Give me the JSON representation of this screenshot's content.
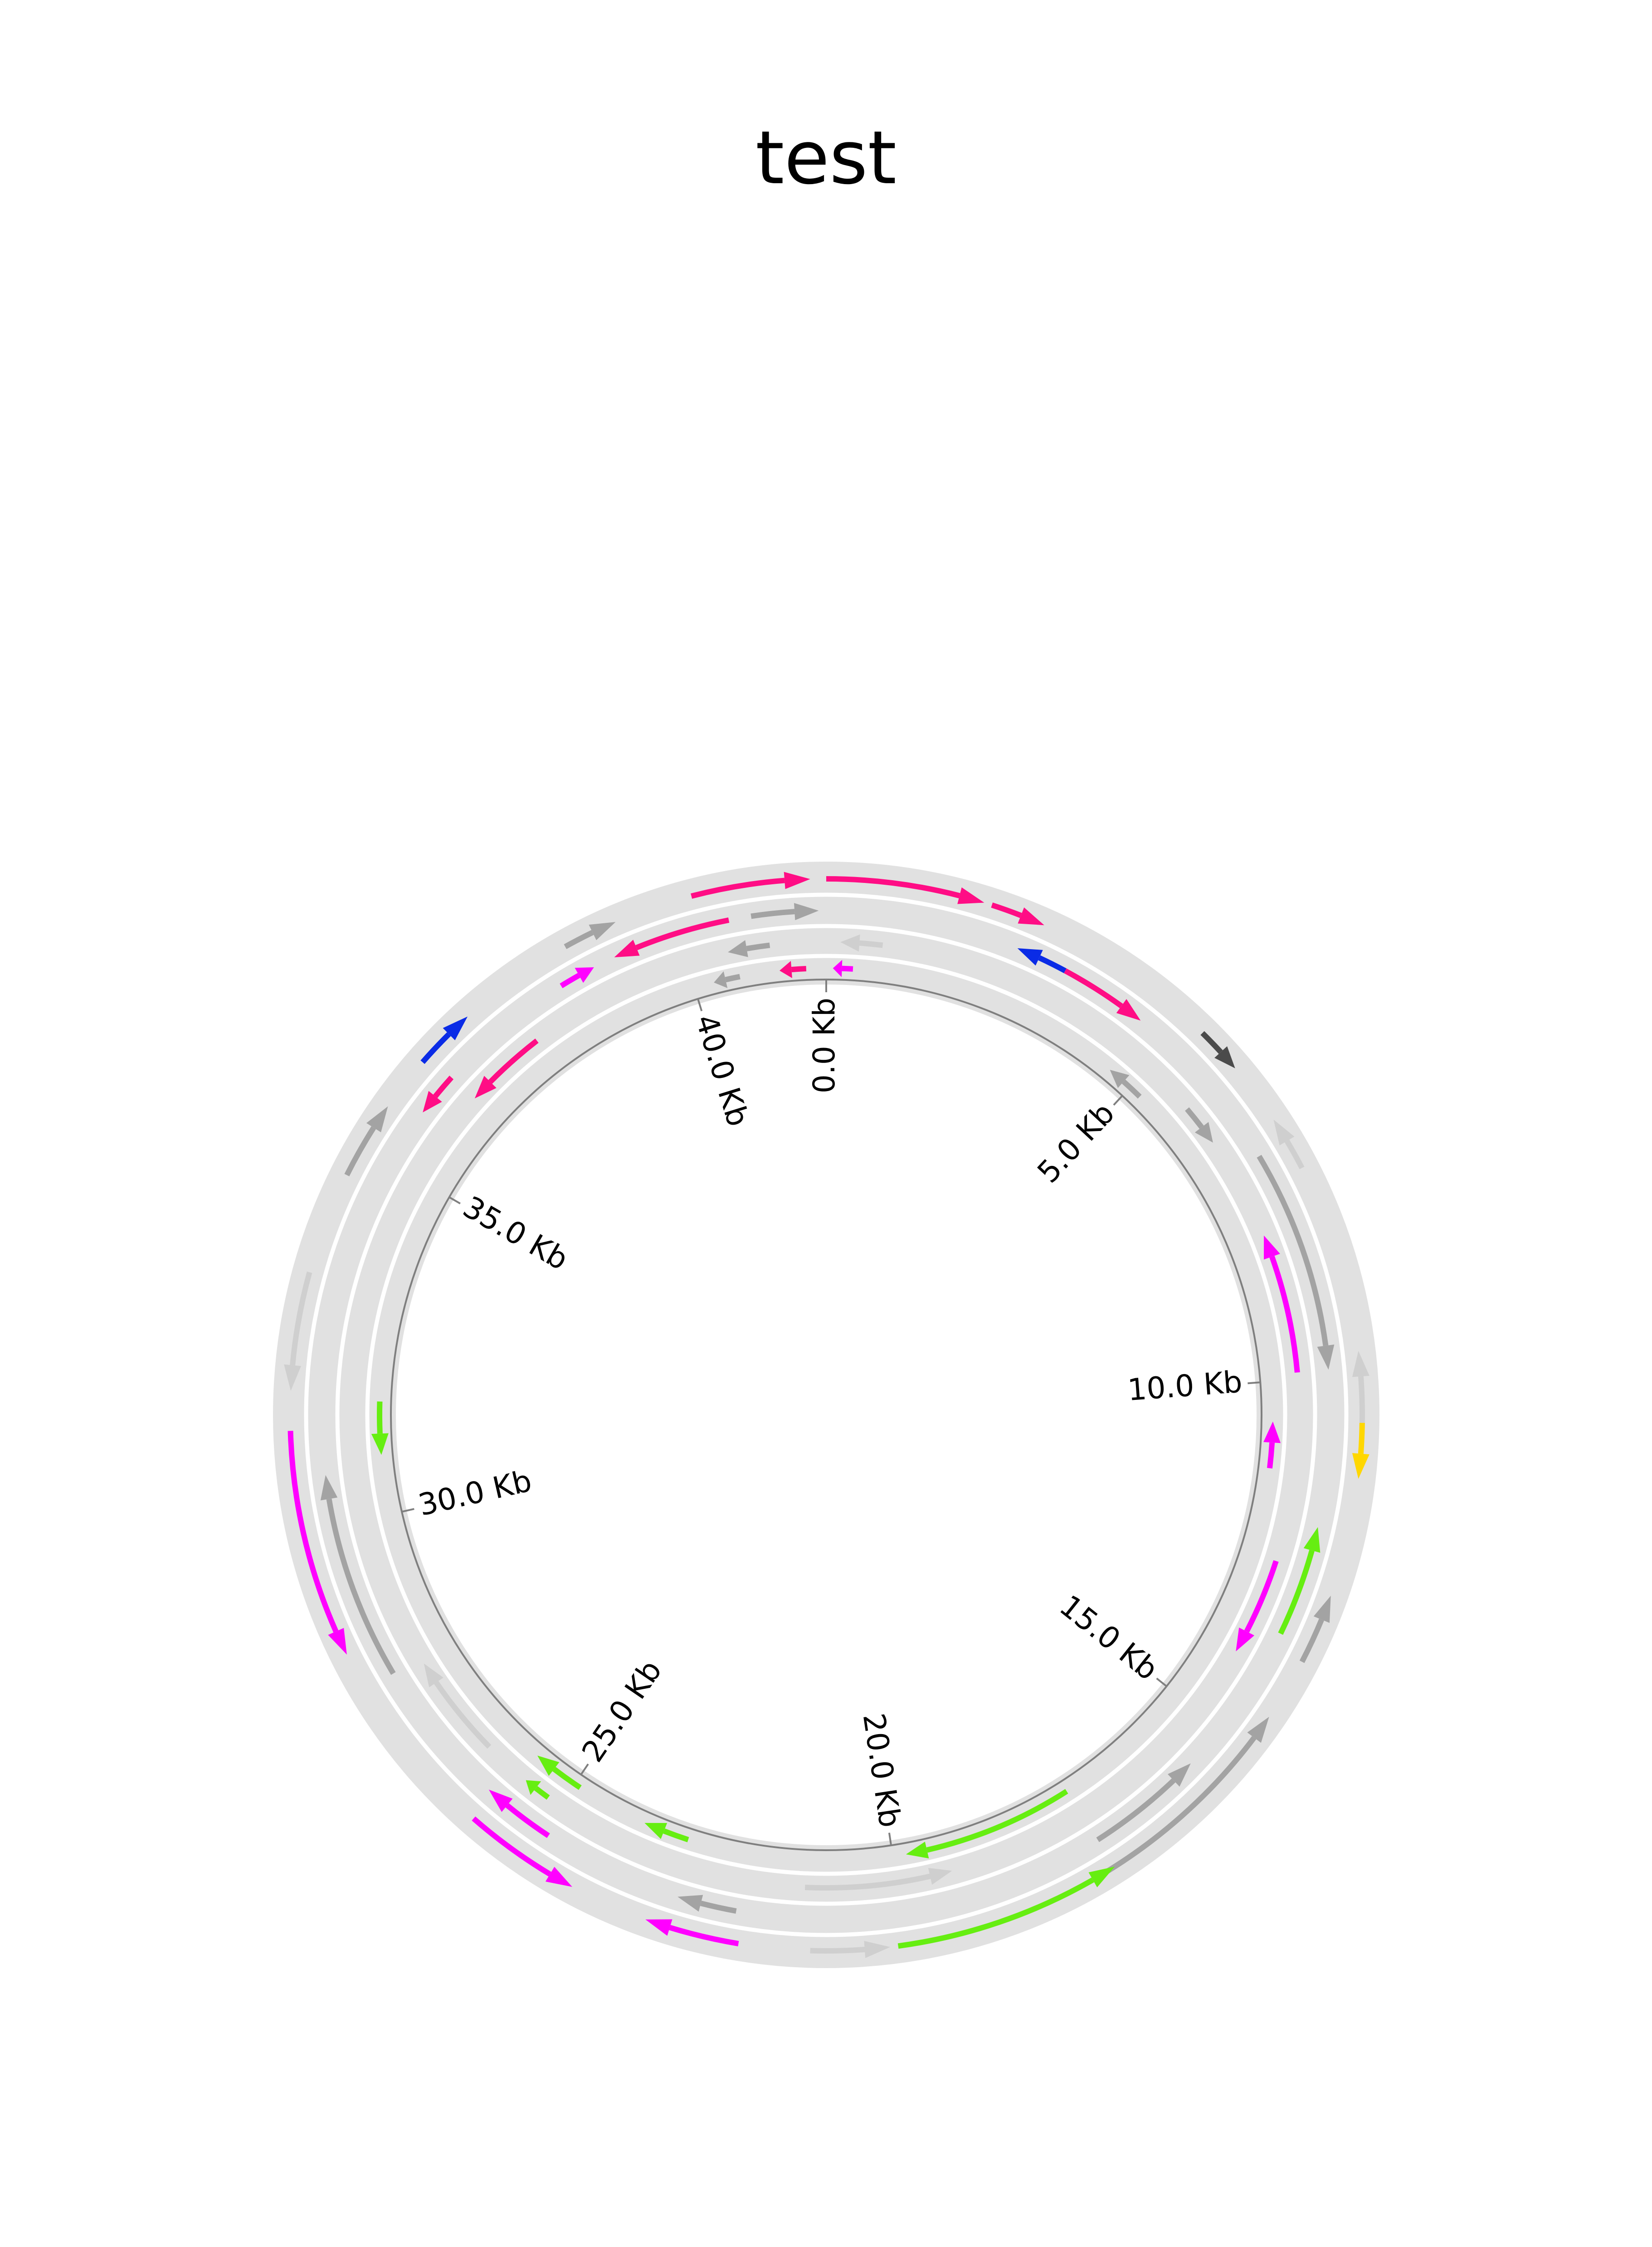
{
  "title": "test",
  "genome": {
    "length_kb": 42.0,
    "tick_labels": [
      "0.0 Kb",
      "5.0 Kb",
      "10.0 Kb",
      "15.0 Kb",
      "20.0 Kb",
      "25.0 Kb",
      "30.0 Kb",
      "35.0 Kb",
      "40.0 Kb"
    ],
    "tick_positions_kb": [
      0,
      5,
      10,
      15,
      20,
      25,
      30,
      35,
      40
    ]
  },
  "colors": {
    "track_background": "#e1e1e1",
    "ring_line": "#7f7f7f",
    "pink": "#ff0d85",
    "magenta": "#ff00ff",
    "green": "#66ee11",
    "blue": "#0a2be6",
    "gray": "#a3a3a3",
    "light_gray": "#cfcfcf",
    "dark_gray": "#4b4b4b",
    "yellow": "#ffd700"
  },
  "features": [
    {
      "track": 0,
      "start": 0.0,
      "end": 2.0,
      "strand": 1,
      "color": "pink"
    },
    {
      "track": 0,
      "start": 2.1,
      "end": 2.8,
      "strand": 1,
      "color": "pink"
    },
    {
      "track": 0,
      "start": 5.2,
      "end": 5.8,
      "strand": 1,
      "color": "dark_gray"
    },
    {
      "track": 0,
      "start": 6.6,
      "end": 7.3,
      "strand": -1,
      "color": "light_gray"
    },
    {
      "track": 0,
      "start": 9.7,
      "end": 10.8,
      "strand": -1,
      "color": "light_gray"
    },
    {
      "track": 0,
      "start": 10.6,
      "end": 11.3,
      "strand": 1,
      "color": "yellow"
    },
    {
      "track": 0,
      "start": 12.8,
      "end": 13.7,
      "strand": -1,
      "color": "gray"
    },
    {
      "track": 0,
      "start": 14.5,
      "end": 17.5,
      "strand": -1,
      "color": "gray"
    },
    {
      "track": 0,
      "start": 17.2,
      "end": 20.1,
      "strand": -1,
      "color": "green"
    },
    {
      "track": 0,
      "start": 20.2,
      "end": 21.2,
      "strand": -1,
      "color": "light_gray"
    },
    {
      "track": 0,
      "start": 22.1,
      "end": 23.3,
      "strand": 1,
      "color": "magenta"
    },
    {
      "track": 0,
      "start": 24.3,
      "end": 25.8,
      "strand": -1,
      "color": "magenta"
    },
    {
      "track": 0,
      "start": 28.4,
      "end": 31.3,
      "strand": -1,
      "color": "magenta"
    },
    {
      "track": 0,
      "start": 31.8,
      "end": 33.3,
      "strand": -1,
      "color": "light_gray"
    },
    {
      "track": 0,
      "start": 34.6,
      "end": 35.6,
      "strand": 1,
      "color": "gray"
    },
    {
      "track": 0,
      "start": 36.3,
      "end": 37.1,
      "strand": 1,
      "color": "blue"
    },
    {
      "track": 0,
      "start": 38.6,
      "end": 39.3,
      "strand": 1,
      "color": "gray"
    },
    {
      "track": 0,
      "start": 40.3,
      "end": 41.8,
      "strand": 1,
      "color": "pink"
    },
    {
      "track": 1,
      "start": 2.6,
      "end": 3.3,
      "strand": -1,
      "color": "blue"
    },
    {
      "track": 1,
      "start": 3.3,
      "end": 4.5,
      "strand": 1,
      "color": "pink"
    },
    {
      "track": 1,
      "start": 6.9,
      "end": 9.9,
      "strand": 1,
      "color": "gray"
    },
    {
      "track": 1,
      "start": 12.0,
      "end": 13.5,
      "strand": -1,
      "color": "green"
    },
    {
      "track": 1,
      "start": 15.6,
      "end": 17.2,
      "strand": -1,
      "color": "gray"
    },
    {
      "track": 1,
      "start": 22.2,
      "end": 23.0,
      "strand": 1,
      "color": "gray"
    },
    {
      "track": 1,
      "start": 24.9,
      "end": 25.9,
      "strand": 1,
      "color": "magenta"
    },
    {
      "track": 1,
      "start": 27.9,
      "end": 30.7,
      "strand": 1,
      "color": "gray"
    },
    {
      "track": 1,
      "start": 35.8,
      "end": 36.4,
      "strand": -1,
      "color": "pink"
    },
    {
      "track": 1,
      "start": 38.3,
      "end": 38.8,
      "strand": 1,
      "color": "magenta"
    },
    {
      "track": 1,
      "start": 39.1,
      "end": 40.7,
      "strand": -1,
      "color": "pink"
    },
    {
      "track": 1,
      "start": 41.0,
      "end": 41.9,
      "strand": 1,
      "color": "gray"
    },
    {
      "track": 2,
      "start": 0.2,
      "end": 0.8,
      "strand": -1,
      "color": "light_gray"
    },
    {
      "track": 2,
      "start": 5.8,
      "end": 6.4,
      "strand": 1,
      "color": "gray"
    },
    {
      "track": 2,
      "start": 7.9,
      "end": 9.9,
      "strand": -1,
      "color": "magenta"
    },
    {
      "track": 2,
      "start": 12.6,
      "end": 14.0,
      "strand": 1,
      "color": "magenta"
    },
    {
      "track": 2,
      "start": 19.2,
      "end": 21.3,
      "strand": -1,
      "color": "light_gray"
    },
    {
      "track": 2,
      "start": 25.2,
      "end": 25.6,
      "strand": 1,
      "color": "green"
    },
    {
      "track": 2,
      "start": 26.3,
      "end": 27.8,
      "strand": 1,
      "color": "light_gray"
    },
    {
      "track": 2,
      "start": 36.4,
      "end": 37.6,
      "strand": -1,
      "color": "pink"
    },
    {
      "track": 2,
      "start": 40.6,
      "end": 41.2,
      "strand": -1,
      "color": "gray"
    },
    {
      "track": 3,
      "start": 0.1,
      "end": 0.4,
      "strand": -1,
      "color": "magenta"
    },
    {
      "track": 3,
      "start": 4.6,
      "end": 5.2,
      "strand": -1,
      "color": "gray"
    },
    {
      "track": 3,
      "start": 10.6,
      "end": 11.3,
      "strand": -1,
      "color": "magenta"
    },
    {
      "track": 3,
      "start": 17.2,
      "end": 19.8,
      "strand": 1,
      "color": "green"
    },
    {
      "track": 3,
      "start": 23.1,
      "end": 23.8,
      "strand": 1,
      "color": "green"
    },
    {
      "track": 3,
      "start": 24.9,
      "end": 25.7,
      "strand": 1,
      "color": "green"
    },
    {
      "track": 3,
      "start": 30.9,
      "end": 31.7,
      "strand": -1,
      "color": "green"
    },
    {
      "track": 3,
      "start": 40.3,
      "end": 40.7,
      "strand": -1,
      "color": "gray"
    },
    {
      "track": 3,
      "start": 41.3,
      "end": 41.7,
      "strand": -1,
      "color": "pink"
    }
  ]
}
